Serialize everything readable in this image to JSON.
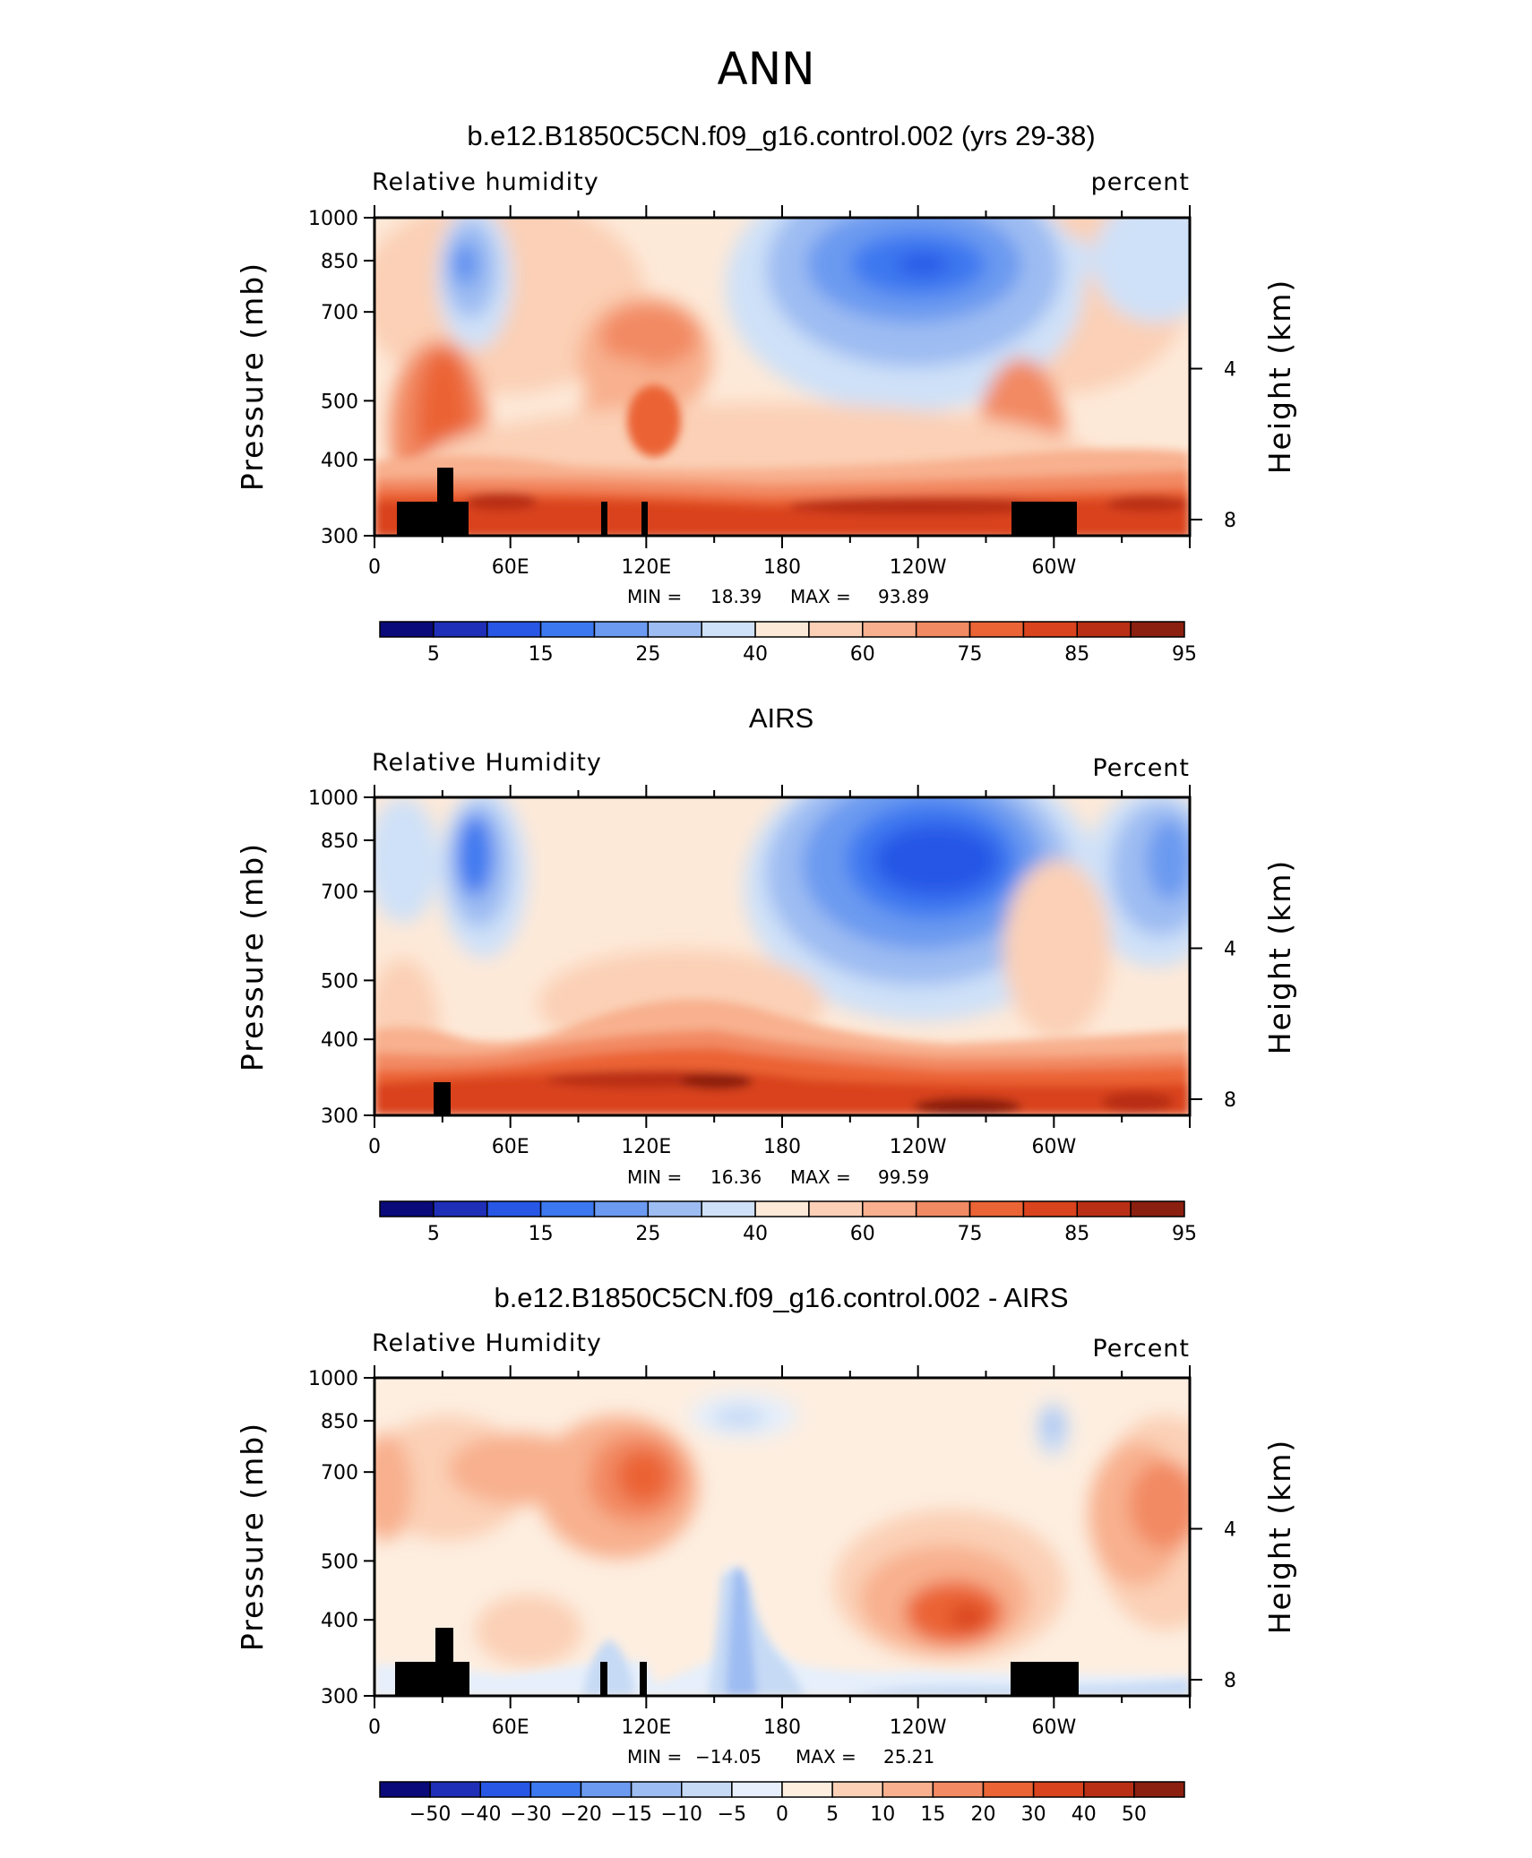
{
  "figure": {
    "title": "ANN"
  },
  "colors": {
    "rh_bar": [
      "#0a0a7a",
      "#1f2fb8",
      "#2857e6",
      "#3c78f0",
      "#6b9af0",
      "#9dbcf2",
      "#cfe1f8",
      "#fde9d8",
      "#fbd0b6",
      "#f8b08e",
      "#f28a63",
      "#eb6435",
      "#d9431d",
      "#b92f15",
      "#8b1f10"
    ],
    "diff_bar": [
      "#0a0a7a",
      "#1f2fb8",
      "#2857e6",
      "#3c78f0",
      "#6b9af0",
      "#9dbcf2",
      "#c6daf5",
      "#e6effb",
      "#fdeee0",
      "#fbd0b6",
      "#f8b08e",
      "#f28a63",
      "#eb6435",
      "#d9431d",
      "#b92f15",
      "#8b1f10"
    ],
    "land": "#000000"
  },
  "chart_data": [
    {
      "type": "heatmap",
      "title": "b.e12.B1850C5CN.f09_g16.control.002 (yrs 29-38)",
      "left_label": "Relative  humidity",
      "right_label": "percent",
      "ylabel": "Pressure (mb)",
      "ylabel2": "Height (km)",
      "x_ticks": [
        "0",
        "60E",
        "120E",
        "180",
        "120W",
        "60W"
      ],
      "y_ticks": [
        "300",
        "400",
        "500",
        "700",
        "850",
        "1000"
      ],
      "y2_ticks": [
        "8",
        "4"
      ],
      "ylim": [
        1000,
        300
      ],
      "min_label": "MIN =",
      "min_value": "18.39",
      "max_label": "MAX =",
      "max_value": "93.89",
      "colorbar_labels": [
        "5",
        "15",
        "25",
        "40",
        "60",
        "75",
        "85",
        "95"
      ]
    },
    {
      "type": "heatmap",
      "title": "AIRS",
      "left_label": "Relative  Humidity",
      "right_label": "Percent",
      "ylabel": "Pressure (mb)",
      "ylabel2": "Height (km)",
      "x_ticks": [
        "0",
        "60E",
        "120E",
        "180",
        "120W",
        "60W"
      ],
      "y_ticks": [
        "300",
        "400",
        "500",
        "700",
        "850",
        "1000"
      ],
      "y2_ticks": [
        "8",
        "4"
      ],
      "ylim": [
        1000,
        300
      ],
      "min_label": "MIN =",
      "min_value": "16.36",
      "max_label": "MAX =",
      "max_value": "99.59",
      "colorbar_labels": [
        "5",
        "15",
        "25",
        "40",
        "60",
        "75",
        "85",
        "95"
      ]
    },
    {
      "type": "heatmap",
      "title": "b.e12.B1850C5CN.f09_g16.control.002 - AIRS",
      "left_label": "Relative  Humidity",
      "right_label": "Percent",
      "ylabel": "Pressure (mb)",
      "ylabel2": "Height (km)",
      "x_ticks": [
        "0",
        "60E",
        "120E",
        "180",
        "120W",
        "60W"
      ],
      "y_ticks": [
        "300",
        "400",
        "500",
        "700",
        "850",
        "1000"
      ],
      "y2_ticks": [
        "8",
        "4"
      ],
      "ylim": [
        1000,
        300
      ],
      "min_label": "MIN =",
      "min_value": "−14.05",
      "max_label": "MAX =",
      "max_value": "25.21",
      "colorbar_labels": [
        "−50",
        "−40",
        "−30",
        "−20",
        "−15",
        "−10",
        "−5",
        "0",
        "5",
        "10",
        "15",
        "20",
        "30",
        "40",
        "50"
      ]
    }
  ]
}
